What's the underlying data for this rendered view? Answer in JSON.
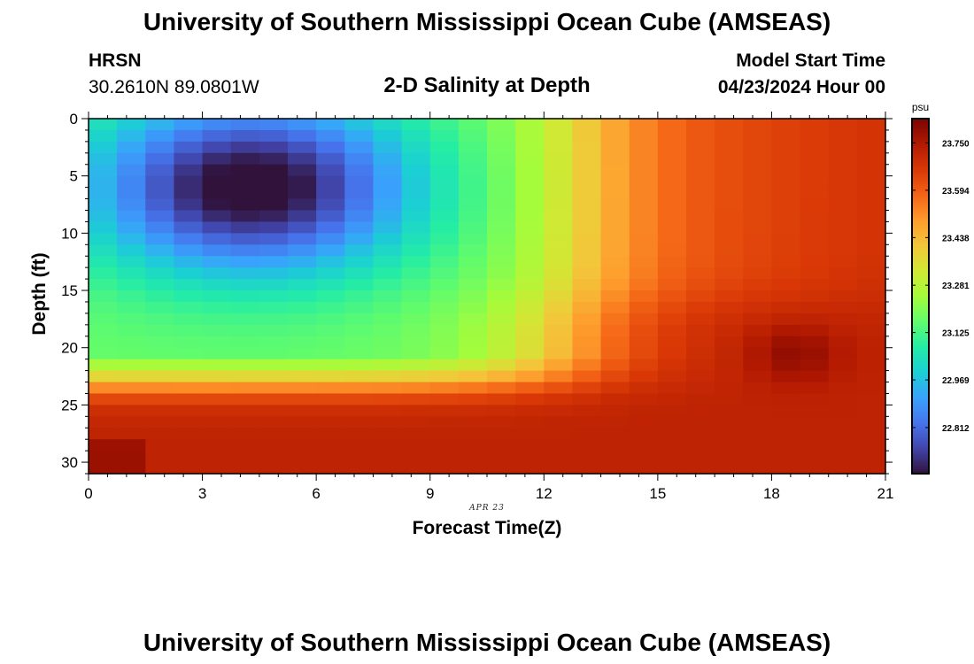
{
  "header": {
    "title": "University of Southern Mississippi Ocean Cube (AMSEAS)",
    "station": "HRSN",
    "coordinates": "30.2610N  89.0801W",
    "chart_title": "2-D Salinity at Depth",
    "model_start_label": "Model Start Time",
    "model_start_value": "04/23/2024 Hour 00",
    "date_label": "APR 23"
  },
  "footer": {
    "title": "University of Southern Mississippi Ocean Cube (AMSEAS)"
  },
  "chart_data": {
    "type": "heatmap",
    "title": "2-D Salinity at Depth",
    "xlabel": "Forecast Time(Z)",
    "ylabel": "Depth (ft)",
    "x_range": [
      0,
      21
    ],
    "y_range": [
      0,
      31
    ],
    "x_ticks": [
      0,
      3,
      6,
      9,
      12,
      15,
      18,
      21
    ],
    "y_ticks": [
      0,
      5,
      10,
      15,
      20,
      25,
      30
    ],
    "y_inverted": true,
    "colorbar": {
      "unit": "psu",
      "min": 22.66,
      "max": 23.83,
      "tick_values": [
        22.812,
        22.969,
        23.125,
        23.281,
        23.438,
        23.594,
        23.75
      ],
      "tick_labels": [
        "22.812",
        "22.969",
        "23.125",
        "23.281",
        "23.438",
        "23.594",
        "23.750"
      ],
      "colors": [
        "#30123b",
        "#4145ab",
        "#4675ed",
        "#39a2fc",
        "#1bcfd4",
        "#24eca6",
        "#61fc6c",
        "#a4fc3b",
        "#d1e834",
        "#f3c63a",
        "#fe9b2d",
        "#f36315",
        "#d93806",
        "#b11901",
        "#7a0402"
      ]
    },
    "field_description": "Low-salinity core (~22.66 psu) near hours 3-6 at 2-10 ft; saltier bottom layer (~23.7-23.8 psu) below 23 ft; high salinity (~23.75-23.8) after hour 15 below 16 ft with maximum near hour 18.5, 20 ft",
    "grid_hours": [
      0.0,
      0.75,
      1.5,
      2.25,
      3.0,
      3.75,
      4.5,
      5.25,
      6.0,
      6.75,
      7.5,
      8.25,
      9.0,
      9.75,
      10.5,
      11.25,
      12.0,
      12.75,
      13.5,
      14.25,
      15.0,
      15.75,
      16.5,
      17.25,
      18.0,
      18.75,
      19.5,
      20.25,
      21.0
    ],
    "grid_depths_ft": [
      0,
      1,
      2,
      3,
      4,
      5,
      6,
      7,
      8,
      9,
      10,
      11,
      12,
      13,
      14,
      15,
      16,
      17,
      18,
      19,
      20,
      21,
      22,
      23,
      24,
      25,
      26,
      27,
      28,
      29,
      30,
      31
    ]
  }
}
